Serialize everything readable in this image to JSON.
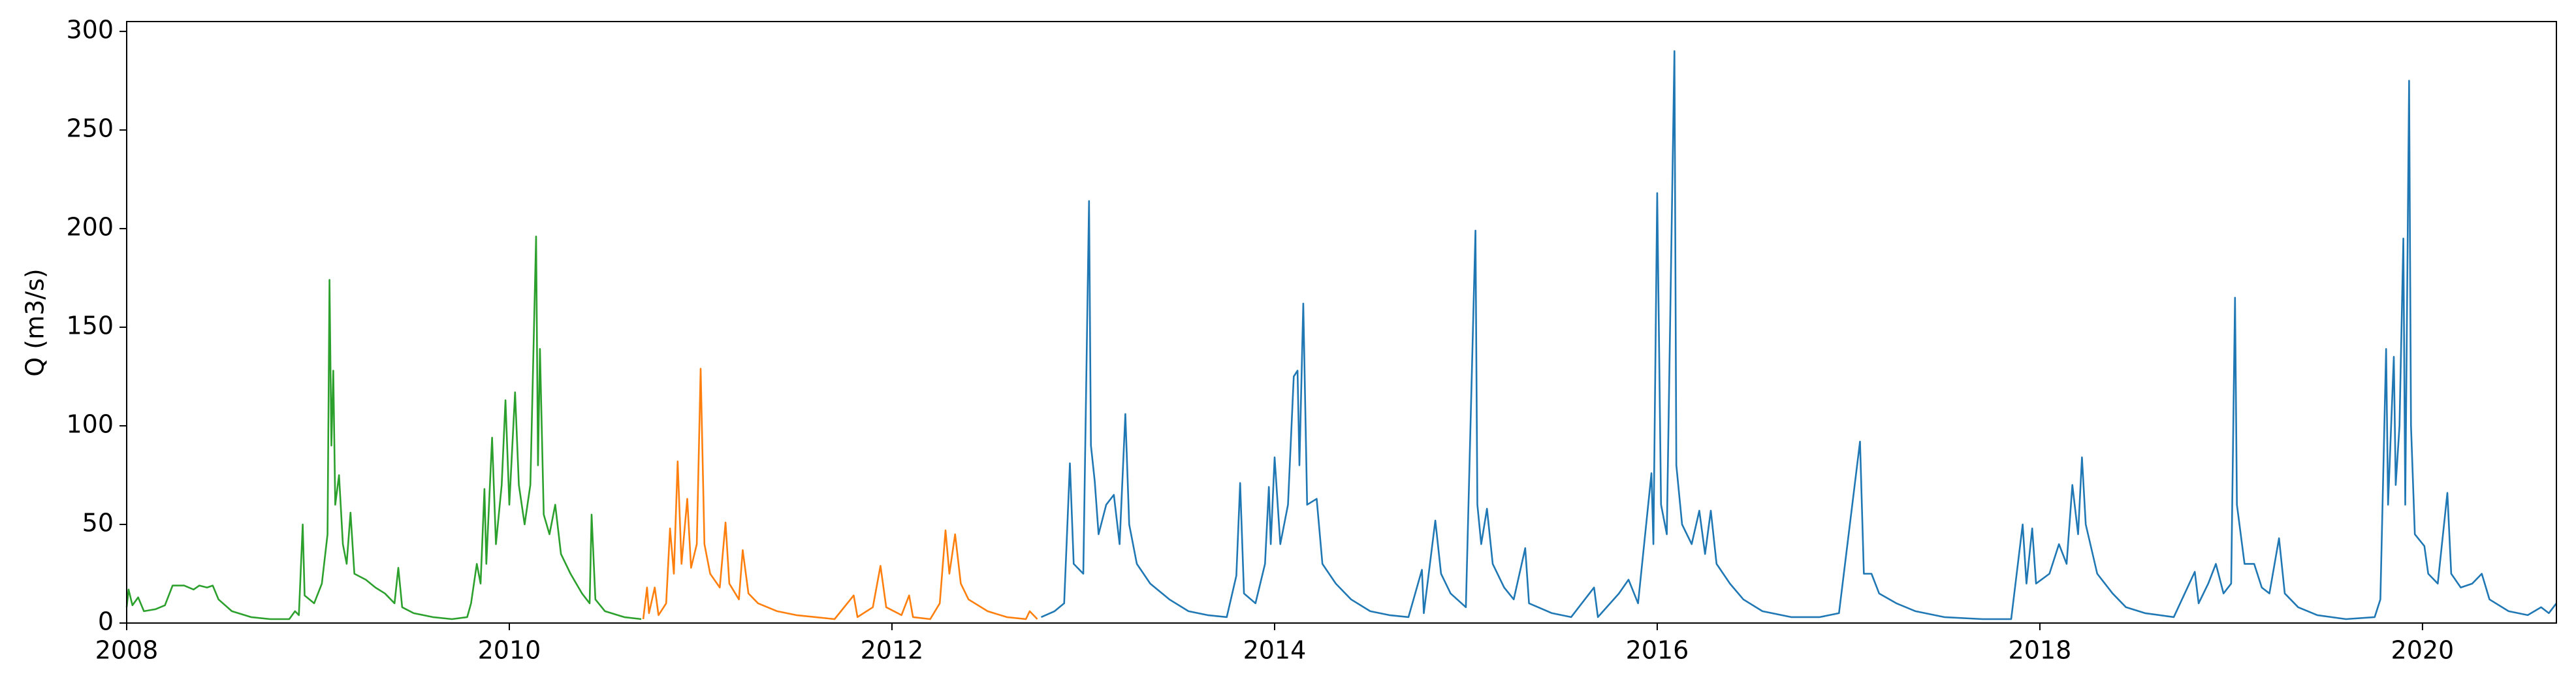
{
  "chart_data": {
    "type": "line",
    "ylabel": "Q (m3/s)",
    "xlim": [
      2008,
      2020.7
    ],
    "xticks": [
      2008,
      2010,
      2012,
      2014,
      2016,
      2018,
      2020
    ],
    "ylim": [
      0,
      305
    ],
    "yticks": [
      0,
      50,
      100,
      150,
      200,
      250,
      300
    ],
    "grid": false,
    "series": [
      {
        "color": "#2ca02c",
        "x": [
          2008.0,
          2008.01,
          2008.03,
          2008.06,
          2008.09,
          2008.15,
          2008.2,
          2008.24,
          2008.3,
          2008.35,
          2008.38,
          2008.42,
          2008.45,
          2008.48,
          2008.55,
          2008.65,
          2008.75,
          2008.85,
          2008.88,
          2008.9,
          2008.92,
          2008.93,
          2008.98,
          2009.02,
          2009.05,
          2009.06,
          2009.07,
          2009.08,
          2009.09,
          2009.11,
          2009.13,
          2009.15,
          2009.17,
          2009.19,
          2009.25,
          2009.3,
          2009.35,
          2009.4,
          2009.42,
          2009.44,
          2009.5,
          2009.6,
          2009.7,
          2009.78,
          2009.8,
          2009.83,
          2009.85,
          2009.87,
          2009.88,
          2009.91,
          2009.93,
          2009.96,
          2009.98,
          2010.0,
          2010.03,
          2010.05,
          2010.08,
          2010.11,
          2010.14,
          2010.15,
          2010.16,
          2010.18,
          2010.21,
          2010.24,
          2010.27,
          2010.32,
          2010.38,
          2010.42,
          2010.43,
          2010.45,
          2010.5,
          2010.6,
          2010.69
        ],
        "values": [
          8,
          17,
          9,
          13,
          6,
          7,
          9,
          19,
          19,
          17,
          19,
          18,
          19,
          12,
          6,
          3,
          2,
          2,
          6,
          4,
          50,
          14,
          10,
          20,
          45,
          174,
          90,
          128,
          60,
          75,
          40,
          30,
          56,
          25,
          22,
          18,
          15,
          10,
          28,
          8,
          5,
          3,
          2,
          3,
          10,
          30,
          20,
          68,
          30,
          94,
          40,
          70,
          113,
          60,
          117,
          70,
          50,
          70,
          196,
          80,
          139,
          55,
          45,
          60,
          35,
          25,
          15,
          10,
          55,
          12,
          6,
          3,
          2
        ]
      },
      {
        "color": "#ff7f0e",
        "x": [
          2010.7,
          2010.72,
          2010.73,
          2010.76,
          2010.78,
          2010.82,
          2010.84,
          2010.86,
          2010.88,
          2010.9,
          2010.93,
          2010.95,
          2010.98,
          2011.0,
          2011.02,
          2011.05,
          2011.1,
          2011.13,
          2011.15,
          2011.2,
          2011.22,
          2011.25,
          2011.3,
          2011.4,
          2011.5,
          2011.6,
          2011.7,
          2011.8,
          2011.82,
          2011.9,
          2011.94,
          2011.97,
          2012.05,
          2012.09,
          2012.11,
          2012.2,
          2012.25,
          2012.28,
          2012.3,
          2012.33,
          2012.36,
          2012.4,
          2012.5,
          2012.6,
          2012.7,
          2012.72,
          2012.76
        ],
        "values": [
          2,
          18,
          5,
          18,
          4,
          10,
          48,
          25,
          82,
          30,
          63,
          28,
          40,
          129,
          40,
          25,
          18,
          51,
          20,
          12,
          37,
          15,
          10,
          6,
          4,
          3,
          2,
          14,
          3,
          8,
          29,
          8,
          4,
          14,
          3,
          2,
          10,
          47,
          25,
          45,
          20,
          12,
          6,
          3,
          2,
          6,
          2
        ]
      },
      {
        "color": "#1f77b4",
        "x": [
          2012.78,
          2012.85,
          2012.9,
          2012.93,
          2012.95,
          2013.0,
          2013.03,
          2013.04,
          2013.06,
          2013.08,
          2013.12,
          2013.16,
          2013.19,
          2013.22,
          2013.24,
          2013.28,
          2013.35,
          2013.45,
          2013.55,
          2013.65,
          2013.75,
          2013.8,
          2013.82,
          2013.84,
          2013.9,
          2013.95,
          2013.97,
          2013.98,
          2014.0,
          2014.03,
          2014.07,
          2014.1,
          2014.12,
          2014.13,
          2014.15,
          2014.17,
          2014.22,
          2014.25,
          2014.32,
          2014.4,
          2014.5,
          2014.6,
          2014.7,
          2014.77,
          2014.78,
          2014.84,
          2014.87,
          2014.92,
          2015.0,
          2015.05,
          2015.06,
          2015.08,
          2015.11,
          2015.14,
          2015.2,
          2015.25,
          2015.31,
          2015.33,
          2015.45,
          2015.55,
          2015.67,
          2015.69,
          2015.8,
          2015.85,
          2015.9,
          2015.97,
          2015.98,
          2016.0,
          2016.02,
          2016.05,
          2016.09,
          2016.1,
          2016.13,
          2016.18,
          2016.22,
          2016.25,
          2016.28,
          2016.31,
          2016.38,
          2016.45,
          2016.55,
          2016.7,
          2016.85,
          2016.95,
          2017.06,
          2017.08,
          2017.12,
          2017.16,
          2017.25,
          2017.35,
          2017.5,
          2017.7,
          2017.85,
          2017.91,
          2017.93,
          2017.96,
          2017.98,
          2018.05,
          2018.1,
          2018.14,
          2018.17,
          2018.2,
          2018.22,
          2018.24,
          2018.3,
          2018.38,
          2018.45,
          2018.55,
          2018.7,
          2018.81,
          2018.83,
          2018.88,
          2018.92,
          2018.96,
          2019.0,
          2019.02,
          2019.03,
          2019.07,
          2019.12,
          2019.16,
          2019.2,
          2019.25,
          2019.28,
          2019.35,
          2019.45,
          2019.6,
          2019.75,
          2019.78,
          2019.81,
          2019.82,
          2019.85,
          2019.86,
          2019.88,
          2019.9,
          2019.91,
          2019.93,
          2019.94,
          2019.96,
          2020.01,
          2020.03,
          2020.08,
          2020.13,
          2020.15,
          2020.2,
          2020.26,
          2020.31,
          2020.35,
          2020.45,
          2020.55,
          2020.62,
          2020.66,
          2020.7
        ],
        "values": [
          3,
          6,
          10,
          81,
          30,
          25,
          214,
          90,
          72,
          45,
          60,
          65,
          40,
          106,
          50,
          30,
          20,
          12,
          6,
          4,
          3,
          24,
          71,
          15,
          10,
          30,
          69,
          40,
          84,
          40,
          60,
          125,
          128,
          80,
          162,
          60,
          63,
          30,
          20,
          12,
          6,
          4,
          3,
          27,
          5,
          52,
          25,
          15,
          8,
          199,
          60,
          40,
          58,
          30,
          18,
          12,
          38,
          10,
          5,
          3,
          18,
          3,
          15,
          22,
          10,
          76,
          40,
          218,
          60,
          45,
          290,
          80,
          50,
          40,
          57,
          35,
          57,
          30,
          20,
          12,
          6,
          3,
          3,
          5,
          92,
          25,
          25,
          15,
          10,
          6,
          3,
          2,
          2,
          50,
          20,
          48,
          20,
          25,
          40,
          30,
          70,
          45,
          84,
          50,
          25,
          15,
          8,
          5,
          3,
          26,
          10,
          20,
          30,
          15,
          20,
          165,
          60,
          30,
          30,
          18,
          15,
          43,
          15,
          8,
          4,
          2,
          3,
          12,
          139,
          60,
          135,
          70,
          100,
          195,
          60,
          275,
          100,
          45,
          39,
          25,
          20,
          66,
          25,
          18,
          20,
          25,
          12,
          6,
          4,
          8,
          5,
          10
        ]
      }
    ]
  }
}
